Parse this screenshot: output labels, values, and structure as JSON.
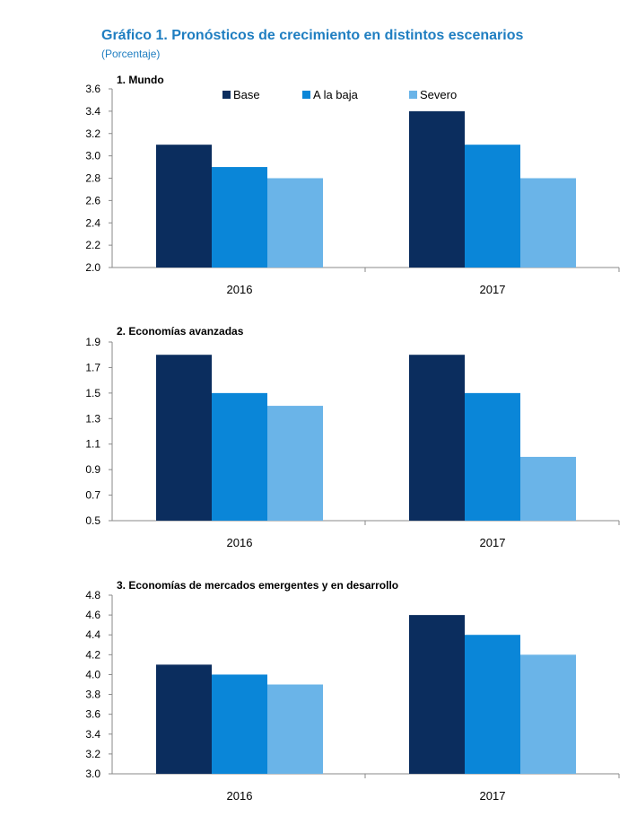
{
  "header": {
    "title": "Gráfico 1. Pronósticos de crecimiento en distintos escenarios",
    "subtitle": "(Porcentaje)"
  },
  "colors": {
    "Base": "#0b2d5e",
    "A la baja": "#0a86d8",
    "Severo": "#6ab4e8"
  },
  "chart_data": [
    {
      "type": "bar",
      "title": "1. Mundo",
      "categories": [
        "2016",
        "2017"
      ],
      "series": [
        {
          "name": "Base",
          "values": [
            3.1,
            3.4
          ]
        },
        {
          "name": "A la baja",
          "values": [
            2.9,
            3.1
          ]
        },
        {
          "name": "Severo",
          "values": [
            2.8,
            2.8
          ]
        }
      ],
      "ylim": [
        2.0,
        3.6
      ],
      "yticks": [
        "3.6",
        "3.4",
        "3.2",
        "3.0",
        "2.8",
        "2.6",
        "2.4",
        "2.2",
        "2.0"
      ],
      "legend": "top",
      "grid": false
    },
    {
      "type": "bar",
      "title": "2. Economías avanzadas",
      "categories": [
        "2016",
        "2017"
      ],
      "series": [
        {
          "name": "Base",
          "values": [
            1.8,
            1.8
          ]
        },
        {
          "name": "A la baja",
          "values": [
            1.5,
            1.5
          ]
        },
        {
          "name": "Severo",
          "values": [
            1.4,
            1.0
          ]
        }
      ],
      "ylim": [
        0.5,
        1.9
      ],
      "yticks": [
        "1.9",
        "1.7",
        "1.5",
        "1.3",
        "1.1",
        "0.9",
        "0.7",
        "0.5"
      ],
      "grid": false
    },
    {
      "type": "bar",
      "title": "3. Economías de mercados emergentes y en desarrollo",
      "categories": [
        "2016",
        "2017"
      ],
      "series": [
        {
          "name": "Base",
          "values": [
            4.1,
            4.6
          ]
        },
        {
          "name": "A la baja",
          "values": [
            4.0,
            4.4
          ]
        },
        {
          "name": "Severo",
          "values": [
            3.9,
            4.2
          ]
        }
      ],
      "ylim": [
        3.0,
        4.8
      ],
      "yticks": [
        "4.8",
        "4.6",
        "4.4",
        "4.2",
        "4.0",
        "3.8",
        "3.6",
        "3.4",
        "3.2",
        "3.0"
      ],
      "grid": false
    }
  ]
}
